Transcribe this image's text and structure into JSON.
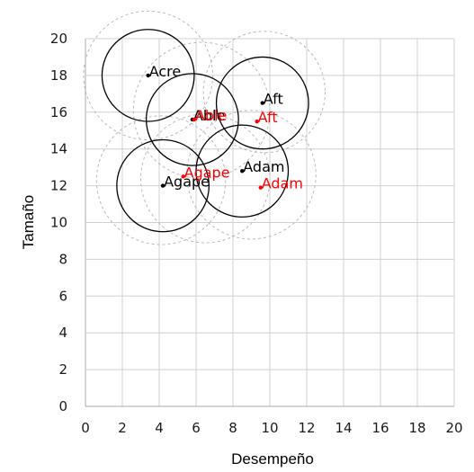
{
  "chart_data": {
    "type": "scatter",
    "title": "",
    "xlabel": "Desempeño",
    "ylabel": "Tamaño",
    "xlim": [
      0,
      20
    ],
    "ylim": [
      0,
      20
    ],
    "xticks": [
      "0",
      "2",
      "4",
      "6",
      "8",
      "10",
      "12",
      "14",
      "16",
      "18",
      "20"
    ],
    "yticks": [
      "0",
      "2",
      "4",
      "6",
      "8",
      "10",
      "12",
      "14",
      "16",
      "18",
      "20"
    ],
    "grid": true,
    "series": [
      {
        "color": "#000000",
        "points": [
          {
            "label": "Acre",
            "x": 3.4,
            "y": 18.0,
            "radius": 2.5
          },
          {
            "label": "Able",
            "x": 5.8,
            "y": 15.6,
            "radius": 2.5
          },
          {
            "label": "Aft",
            "x": 9.6,
            "y": 16.5,
            "radius": 2.5
          },
          {
            "label": "Adam",
            "x": 8.5,
            "y": 12.8,
            "radius": 2.5
          },
          {
            "label": "Agape",
            "x": 4.2,
            "y": 12.0,
            "radius": 2.5
          }
        ]
      },
      {
        "color": "#ff0000",
        "points": [
          {
            "label": "Able",
            "x": 5.9,
            "y": 15.6
          },
          {
            "label": "Aft",
            "x": 9.3,
            "y": 15.5
          },
          {
            "label": "Adam",
            "x": 9.5,
            "y": 11.9
          },
          {
            "label": "Agape",
            "x": 5.3,
            "y": 12.5
          }
        ]
      }
    ],
    "ring_circles": [
      {
        "x": 3.4,
        "y": 18.0,
        "radius": 3.5
      },
      {
        "x": 6.3,
        "y": 16.1,
        "radius": 3.7
      },
      {
        "x": 9.7,
        "y": 17.1,
        "radius": 3.3
      },
      {
        "x": 4.1,
        "y": 12.3,
        "radius": 3.5
      },
      {
        "x": 6.5,
        "y": 12.4,
        "radius": 3.5
      },
      {
        "x": 9.0,
        "y": 12.6,
        "radius": 3.5
      }
    ],
    "colors": {
      "grid": "#d0d0d0",
      "axis": "#aaaaaa",
      "ring": "#b8b8b8",
      "circle": "#000000",
      "point": "#000000",
      "red": "#ff0000"
    }
  }
}
